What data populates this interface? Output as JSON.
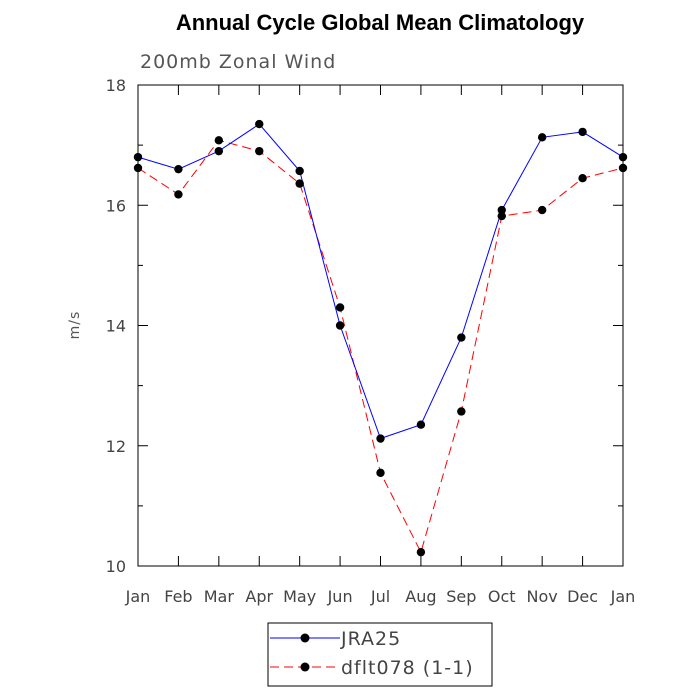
{
  "chart_data": {
    "type": "line",
    "title": "Annual Cycle Global Mean Climatology",
    "subtitle": "200mb Zonal Wind",
    "xlabel": "",
    "ylabel": "m/s",
    "categories": [
      "Jan",
      "Feb",
      "Mar",
      "Apr",
      "May",
      "Jun",
      "Jul",
      "Aug",
      "Sep",
      "Oct",
      "Nov",
      "Dec",
      "Jan"
    ],
    "ylim": [
      10,
      18
    ],
    "yticks": [
      10,
      12,
      14,
      16,
      18
    ],
    "series": [
      {
        "name": "JRA25",
        "color": "#0000ff",
        "dash": "solid",
        "marker": "filled-circle",
        "values": [
          16.8,
          16.6,
          16.9,
          17.35,
          16.57,
          14.0,
          12.12,
          12.35,
          13.8,
          15.92,
          17.13,
          17.22,
          16.8
        ]
      },
      {
        "name": "dflt078 (1-1)",
        "color": "#ff0000",
        "dash": "dashed",
        "marker": "filled-circle",
        "values": [
          16.62,
          16.18,
          17.08,
          16.9,
          16.36,
          14.3,
          11.55,
          10.23,
          12.57,
          15.82,
          15.92,
          16.45,
          16.62
        ]
      }
    ],
    "legend_position": "bottom-center"
  }
}
